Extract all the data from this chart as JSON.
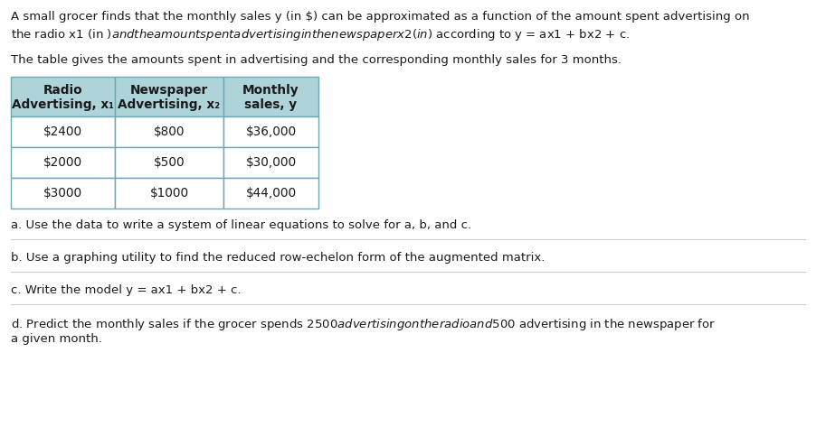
{
  "intro_line1": "A small grocer finds that the monthly sales y (in $) can be approximated as a function of the amount spent advertising on",
  "intro_line2": "the radio x1 (in $) and the amount spent advertising in the newspaper x2 (in $) according to y = ax1 + bx2 + c.",
  "table_intro": "The table gives the amounts spent in advertising and the corresponding monthly sales for 3 months.",
  "col_headers": [
    [
      "Radio",
      "Advertising, x₁"
    ],
    [
      "Newspaper",
      "Advertising, x₂"
    ],
    [
      "Monthly",
      "sales, y"
    ]
  ],
  "rows": [
    [
      "$2400",
      "$800",
      "$36,000"
    ],
    [
      "$2000",
      "$500",
      "$30,000"
    ],
    [
      "$3000",
      "$1000",
      "$44,000"
    ]
  ],
  "header_bg": "#aed4da",
  "table_border": "#6aa8b4",
  "row_bg": "#ffffff",
  "part_a": "a. Use the data to write a system of linear equations to solve for a, b, and c.",
  "part_b": "b. Use a graphing utility to find the reduced row-echelon form of the augmented matrix.",
  "part_c": "c. Write the model y = ax1 + bx2 + c.",
  "part_d_line1": "d. Predict the monthly sales if the grocer spends $2500 advertising on the radio and $500 advertising in the newspaper for",
  "part_d_line2": "a given month.",
  "bg_color": "#ffffff",
  "text_color": "#1a1a1a",
  "divider_color": "#cccccc",
  "font_size": 9.5,
  "table_font_size": 9.8
}
